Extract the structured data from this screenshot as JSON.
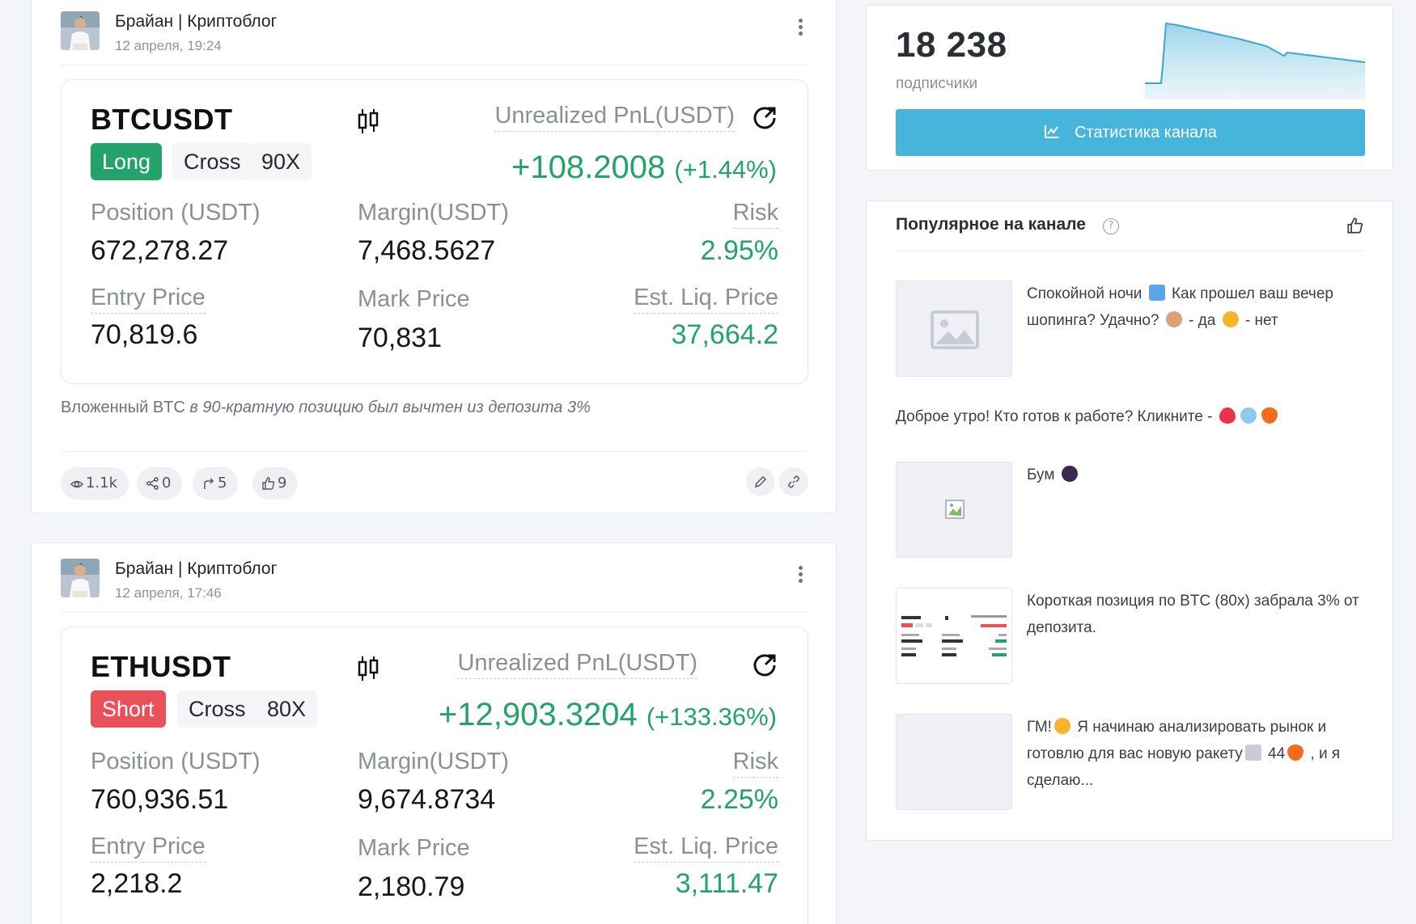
{
  "posts": [
    {
      "author": "Брайан | Криптоблог",
      "date": "12 апреля, 19:24",
      "trade": {
        "symbol": "BTCUSDT",
        "side": "Long",
        "margin_mode": "Cross",
        "leverage": "90X",
        "pnl_label": "Unrealized PnL(USDT)",
        "pnl_value": "+108.2008",
        "pnl_percent": "(+1.44%)",
        "position_label": "Position (USDT)",
        "position_value": "672,278.27",
        "margin_label": "Margin(USDT)",
        "margin_value": "7,468.5627",
        "risk_label": "Risk",
        "risk_value": "2.95%",
        "entry_label": "Entry Price",
        "entry_value": "70,819.6",
        "mark_label": "Mark Price",
        "mark_value": "70,831",
        "liq_label": "Est. Liq. Price",
        "liq_value": "37,664.2"
      },
      "caption_plain": "Вложенный BTC ",
      "caption_italic": "в 90-кратную позицию был вычтен из депозита 3%",
      "stats": {
        "views": "1.1k",
        "shares": "0",
        "forwards": "5",
        "likes": "9"
      }
    },
    {
      "author": "Брайан | Криптоблог",
      "date": "12 апреля, 17:46",
      "trade": {
        "symbol": "ETHUSDT",
        "side": "Short",
        "margin_mode": "Cross",
        "leverage": "80X",
        "pnl_label": "Unrealized PnL(USDT)",
        "pnl_value": "+12,903.3204",
        "pnl_percent": "(+133.36%)",
        "position_label": "Position (USDT)",
        "position_value": "760,936.51",
        "margin_label": "Margin(USDT)",
        "margin_value": "9,674.8734",
        "risk_label": "Risk",
        "risk_value": "2.25%",
        "entry_label": "Entry Price",
        "entry_value": "2,218.2",
        "mark_label": "Mark Price",
        "mark_value": "2,180.79",
        "liq_label": "Est. Liq. Price",
        "liq_value": "3,111.47"
      }
    }
  ],
  "sidebar": {
    "subscribers": {
      "count": "18 238",
      "label": "подписчики",
      "button_label": "Статистика канала"
    },
    "popular": {
      "title": "Популярное на канале",
      "items": [
        {
          "text_a": "Спокойной ночи ",
          "text_b": " Как прошел ваш вечер шопинга? Удачно? ",
          "text_c": " - да ",
          "text_d": " - нет"
        },
        {
          "text_a": "Доброе утро! Кто готов к работе? Кликните - "
        },
        {
          "text_a": "Бум "
        },
        {
          "text_a": "Короткая позиция по BTC (80х) забрала 3% от депозита."
        },
        {
          "text_a": "ГМ!",
          "text_b": " Я начинаю анализировать рынок и готовлю для вас новую ракету",
          "text_c": " 44",
          "text_d": " , и я сделаю..."
        }
      ]
    }
  },
  "colors": {
    "accent_blue": "#47b4dc",
    "long_green": "#23a36a",
    "short_red": "#ea505a"
  }
}
